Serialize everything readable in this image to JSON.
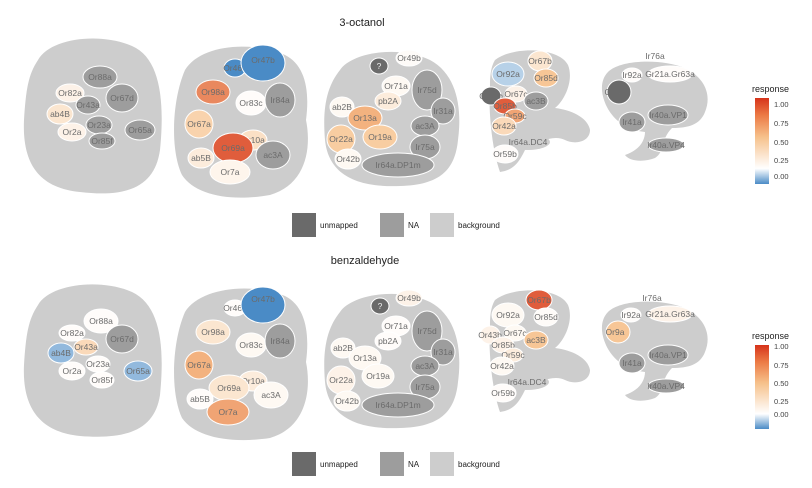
{
  "legend": {
    "unmapped": "unmapped",
    "na": "NA",
    "background": "background"
  },
  "colorbar": {
    "title": "response",
    "ticks": [
      "1.00",
      "0.75",
      "0.50",
      "0.25",
      "0.00"
    ]
  },
  "colors": {
    "background": "#cdcdcd",
    "na": "#9d9d9d",
    "unmapped": "#6a6a6a",
    "scale_low": "#4a8bc6",
    "scale_zero": "#ffffff",
    "scale_mid": "#f6c08a",
    "scale_high": "#d6331b"
  },
  "panels": [
    {
      "title": "3-octanol",
      "glomeruli": [
        {
          "label": "Or82a",
          "state": "value",
          "value": 0.1
        },
        {
          "label": "ab4B",
          "state": "value",
          "value": 0.2
        },
        {
          "label": "Or2a",
          "state": "value",
          "value": 0.1
        },
        {
          "label": "Or88a",
          "state": "na"
        },
        {
          "label": "Or43a",
          "state": "na"
        },
        {
          "label": "Or67d",
          "state": "na"
        },
        {
          "label": "Or23a",
          "state": "na"
        },
        {
          "label": "Or85f",
          "state": "na"
        },
        {
          "label": "Or65a",
          "state": "na"
        },
        {
          "label": "Or46a",
          "state": "value",
          "value": -0.6
        },
        {
          "label": "Or47b",
          "state": "value",
          "value": -0.25
        },
        {
          "label": "Or98a",
          "state": "value",
          "value": 0.7
        },
        {
          "label": "Or83c",
          "state": "value",
          "value": 0.02
        },
        {
          "label": "Ir84a",
          "state": "na"
        },
        {
          "label": "Or67a",
          "state": "value",
          "value": 0.35
        },
        {
          "label": "Or10a",
          "state": "value",
          "value": 0.25
        },
        {
          "label": "Or69a",
          "state": "value",
          "value": 0.85
        },
        {
          "label": "ab5B",
          "state": "value",
          "value": 0.15
        },
        {
          "label": "ac3A",
          "state": "na"
        },
        {
          "label": "Or7a",
          "state": "value",
          "value": 0.08
        },
        {
          "label": "?",
          "state": "unmapped"
        },
        {
          "label": "Or49b",
          "state": "value",
          "value": 0.03
        },
        {
          "label": "Or71a",
          "state": "value",
          "value": 0.05
        },
        {
          "label": "Ir75d",
          "state": "na"
        },
        {
          "label": "ab2B",
          "state": "value",
          "value": 0.05
        },
        {
          "label": "pb2A",
          "state": "value",
          "value": 0.15
        },
        {
          "label": "Ir31a",
          "state": "na"
        },
        {
          "label": "Or13a",
          "state": "value",
          "value": 0.55
        },
        {
          "label": "Or19a",
          "state": "value",
          "value": 0.4
        },
        {
          "label": "ac3A",
          "state": "na"
        },
        {
          "label": "Or22a",
          "state": "value",
          "value": 0.4
        },
        {
          "label": "Ir75a",
          "state": "na"
        },
        {
          "label": "Or42b",
          "state": "value",
          "value": 0.05
        },
        {
          "label": "Ir64a.DP1m",
          "state": "na"
        },
        {
          "label": "Or92a",
          "state": "value",
          "value": -0.1
        },
        {
          "label": "Or67b",
          "state": "value",
          "value": 0.2
        },
        {
          "label": "Or85d",
          "state": "value",
          "value": 0.45
        },
        {
          "label": "Or43b",
          "state": "unmapped"
        },
        {
          "label": "Or67c",
          "state": "value",
          "value": 0.1
        },
        {
          "label": "Or85b",
          "state": "value",
          "value": 0.85
        },
        {
          "label": "ac3B",
          "state": "na"
        },
        {
          "label": "Or59c",
          "state": "value",
          "value": 0.6
        },
        {
          "label": "Or42a",
          "state": "value",
          "value": 0.3
        },
        {
          "label": "Ir64a.DC4",
          "state": "background"
        },
        {
          "label": "Or59b",
          "state": "value",
          "value": 0.02
        },
        {
          "label": "Ir76a",
          "state": "background"
        },
        {
          "label": "Ir92a",
          "state": "value",
          "value": 0.02
        },
        {
          "label": "Gr21a.Gr63a",
          "state": "value",
          "value": 0.02
        },
        {
          "label": "Or9a",
          "state": "unmapped"
        },
        {
          "label": "Ir41a",
          "state": "na"
        },
        {
          "label": "Ir40a.VP1",
          "state": "na"
        },
        {
          "label": "Ir40a.VP4",
          "state": "na"
        }
      ]
    },
    {
      "title": "benzaldehyde",
      "glomeruli": [
        {
          "label": "Or88a",
          "state": "value",
          "value": 0.02
        },
        {
          "label": "Or82a",
          "state": "value",
          "value": 0.02
        },
        {
          "label": "ab4B",
          "state": "value",
          "value": -0.15
        },
        {
          "label": "Or43a",
          "state": "value",
          "value": 0.3
        },
        {
          "label": "Or67d",
          "state": "na"
        },
        {
          "label": "Or2a",
          "state": "value",
          "value": 0.02
        },
        {
          "label": "Or23a",
          "state": "value",
          "value": 0.02
        },
        {
          "label": "Or85f",
          "state": "value",
          "value": 0.02
        },
        {
          "label": "Or65a",
          "state": "value",
          "value": -0.15
        },
        {
          "label": "Or46a",
          "state": "value",
          "value": 0.02
        },
        {
          "label": "Or47b",
          "state": "value",
          "value": -0.35
        },
        {
          "label": "Or98a",
          "state": "value",
          "value": 0.2
        },
        {
          "label": "Or83c",
          "state": "value",
          "value": 0.05
        },
        {
          "label": "Ir84a",
          "state": "na"
        },
        {
          "label": "Or67a",
          "state": "value",
          "value": 0.55
        },
        {
          "label": "Or10a",
          "state": "value",
          "value": 0.15
        },
        {
          "label": "Or69a",
          "state": "value",
          "value": 0.2
        },
        {
          "label": "ac3A",
          "state": "value",
          "value": 0.05
        },
        {
          "label": "ab5B",
          "state": "value",
          "value": 0.02
        },
        {
          "label": "Or7a",
          "state": "value",
          "value": 0.6
        },
        {
          "label": "?",
          "state": "unmapped"
        },
        {
          "label": "Or49b",
          "state": "value",
          "value": 0.1
        },
        {
          "label": "Or71a",
          "state": "value",
          "value": 0.02
        },
        {
          "label": "Ir75d",
          "state": "na"
        },
        {
          "label": "ab2B",
          "state": "value",
          "value": 0.05
        },
        {
          "label": "pb2A",
          "state": "value",
          "value": 0.02
        },
        {
          "label": "Or13a",
          "state": "value",
          "value": 0.05
        },
        {
          "label": "Ir31a",
          "state": "na"
        },
        {
          "label": "Or22a",
          "state": "value",
          "value": 0.1
        },
        {
          "label": "Or19a",
          "state": "value",
          "value": 0.05
        },
        {
          "label": "ac3A",
          "state": "na"
        },
        {
          "label": "Ir75a",
          "state": "na"
        },
        {
          "label": "Or42b",
          "state": "value",
          "value": 0.05
        },
        {
          "label": "Ir64a.DP1m",
          "state": "na"
        },
        {
          "label": "Or67b",
          "state": "value",
          "value": 0.85
        },
        {
          "label": "Or92a",
          "state": "value",
          "value": 0.05
        },
        {
          "label": "Or85d",
          "state": "value",
          "value": 0.03
        },
        {
          "label": "Or43b",
          "state": "value",
          "value": 0.1
        },
        {
          "label": "Or67c",
          "state": "value",
          "value": 0.05
        },
        {
          "label": "Or85b",
          "state": "value",
          "value": 0.1
        },
        {
          "label": "ac3B",
          "state": "value",
          "value": 0.45
        },
        {
          "label": "Or59c",
          "state": "value",
          "value": 0.15
        },
        {
          "label": "Or42a",
          "state": "value",
          "value": 0.05
        },
        {
          "label": "Ir64a.DC4",
          "state": "background"
        },
        {
          "label": "Or59b",
          "state": "value",
          "value": 0.02
        },
        {
          "label": "Ir76a",
          "state": "background"
        },
        {
          "label": "Ir92a",
          "state": "value",
          "value": 0.02
        },
        {
          "label": "Gr21a.Gr63a",
          "state": "value",
          "value": 0.1
        },
        {
          "label": "Or9a",
          "state": "value",
          "value": 0.45
        },
        {
          "label": "Ir41a",
          "state": "na"
        },
        {
          "label": "Ir40a.VP1",
          "state": "na"
        },
        {
          "label": "Ir40a.VP4",
          "state": "na"
        }
      ]
    }
  ]
}
